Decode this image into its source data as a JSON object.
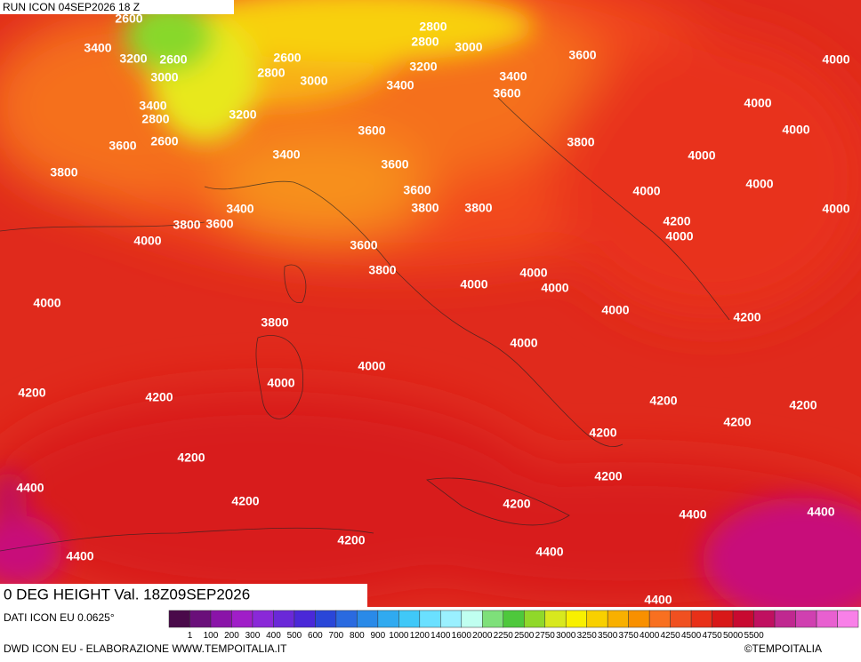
{
  "header": {
    "run": "RUN ICON 04SEP2026 18 Z"
  },
  "map": {
    "title": "0 DEG HEIGHT Val. 18Z09SEP2026",
    "contour_labels": [
      2600,
      3400,
      3200,
      2600,
      3000,
      3400,
      2800,
      3600,
      2600,
      3800,
      3200,
      2800,
      2600,
      3000,
      2800,
      2800,
      3000,
      3200,
      3400,
      3600,
      3400,
      3600,
      4000,
      4000,
      4000,
      3800,
      4000,
      4000,
      4000,
      4000,
      4200,
      4000,
      3600,
      3600,
      3400,
      3600,
      3800,
      3800,
      3400,
      3800,
      3600,
      4000,
      3600,
      3800,
      4000,
      4000,
      4000,
      4000,
      4200,
      4000,
      3800,
      4000,
      4000,
      4000,
      4200,
      4200,
      4200,
      4200,
      4200,
      4200,
      4200,
      4200,
      4400,
      4200,
      4200,
      4400,
      4400,
      4200,
      4400,
      4400,
      4400
    ]
  },
  "legend": {
    "source": "DATI ICON EU 0.0625°",
    "labels": [
      1,
      100,
      200,
      300,
      400,
      500,
      600,
      700,
      800,
      900,
      1000,
      1200,
      1400,
      1600,
      2000,
      2250,
      2500,
      2750,
      3000,
      3250,
      3500,
      3750,
      4000,
      4250,
      4500,
      4750,
      5000,
      5500
    ],
    "colors": [
      "#4a0a4a",
      "#6a0f7a",
      "#8a14a8",
      "#a01ec8",
      "#8a28d8",
      "#6a28d8",
      "#4a28d8",
      "#2a46d8",
      "#2a6ae0",
      "#2a8ae8",
      "#30aaf0",
      "#40c8f8",
      "#6ae0ff",
      "#9af0ff",
      "#c0fff0",
      "#7ee07a",
      "#4ec83c",
      "#90d82a",
      "#d8e81e",
      "#f8f000",
      "#f8d000",
      "#f8b000",
      "#f89000",
      "#f87020",
      "#f05020",
      "#e83018",
      "#d81818",
      "#c80a30",
      "#c01060",
      "#c02890",
      "#d040b0",
      "#e860d0",
      "#f880e8"
    ]
  },
  "footer": {
    "credit": "DWD ICON EU - ELABORAZIONE WWW.TEMPOITALIA.IT",
    "copyright": "©TEMPOITALIA"
  }
}
